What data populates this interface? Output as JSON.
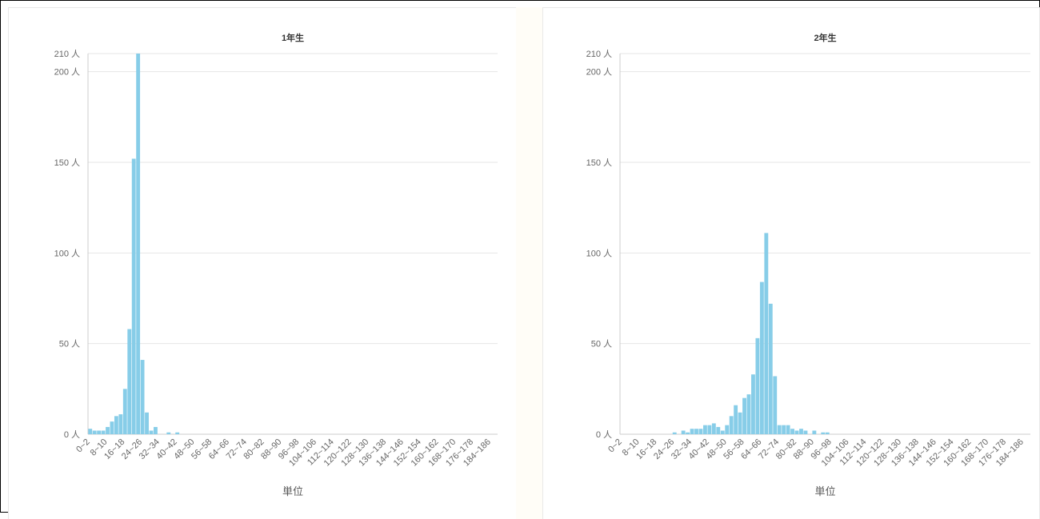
{
  "chart_data": [
    {
      "type": "bar",
      "title": "1年生",
      "xlabel": "単位",
      "ylabel": "",
      "ylim": [
        0,
        210
      ],
      "y_ticks": [
        "0 人",
        "50 人",
        "100 人",
        "150 人",
        "200 人",
        "210 人"
      ],
      "y_tick_values": [
        0,
        50,
        100,
        150,
        200,
        210
      ],
      "bar_color": "#87cde8",
      "x_tick_labels": [
        "0~2",
        "8~10",
        "16~18",
        "24~26",
        "32~34",
        "40~42",
        "48~50",
        "56~58",
        "64~66",
        "72~74",
        "80~82",
        "88~90",
        "96~98",
        "104~106",
        "112~114",
        "120~122",
        "128~130",
        "136~138",
        "144~146",
        "152~154",
        "160~162",
        "168~170",
        "176~178",
        "184~186"
      ],
      "values": [
        3,
        2,
        2,
        2,
        4,
        7,
        10,
        11,
        25,
        58,
        152,
        210,
        41,
        12,
        2,
        4,
        0,
        0,
        1,
        0,
        1,
        0,
        0,
        0,
        0,
        0,
        0,
        0,
        0,
        0,
        0,
        0,
        0,
        0,
        0,
        0,
        0,
        0,
        0,
        0,
        0,
        0,
        0,
        0,
        0,
        0,
        0,
        0,
        0,
        0,
        0,
        0,
        0,
        0,
        0,
        0,
        0,
        0,
        0,
        0,
        0,
        0,
        0,
        0,
        0,
        0,
        0,
        0,
        0,
        0,
        0,
        0,
        0,
        0,
        0,
        0,
        0,
        0,
        0,
        0,
        0,
        0,
        0,
        0,
        0,
        0,
        0,
        0,
        0,
        0,
        0,
        0,
        0,
        0
      ]
    },
    {
      "type": "bar",
      "title": "2年生",
      "xlabel": "単位",
      "ylabel": "",
      "ylim": [
        0,
        210
      ],
      "y_ticks": [
        "0 人",
        "50 人",
        "100 人",
        "150 人",
        "200 人",
        "210 人"
      ],
      "y_tick_values": [
        0,
        50,
        100,
        150,
        200,
        210
      ],
      "bar_color": "#87cde8",
      "x_tick_labels": [
        "0~2",
        "8~10",
        "16~18",
        "24~26",
        "32~34",
        "40~42",
        "48~50",
        "56~58",
        "64~66",
        "72~74",
        "80~82",
        "88~90",
        "96~98",
        "104~106",
        "112~114",
        "120~122",
        "128~130",
        "136~138",
        "144~146",
        "152~154",
        "160~162",
        "168~170",
        "176~178",
        "184~186"
      ],
      "values": [
        0,
        0,
        0,
        0,
        0,
        0,
        0,
        0,
        0,
        0,
        0,
        0,
        1,
        0,
        2,
        1,
        3,
        3,
        3,
        5,
        5,
        6,
        4,
        2,
        5,
        10,
        16,
        12,
        20,
        22,
        33,
        53,
        84,
        111,
        72,
        32,
        5,
        5,
        5,
        3,
        2,
        3,
        2,
        0,
        2,
        0,
        1,
        1,
        0,
        0,
        0,
        0,
        0,
        0,
        0,
        0,
        0,
        0,
        0,
        0,
        0,
        0,
        0,
        0,
        0,
        0,
        0,
        0,
        0,
        0,
        0,
        0,
        0,
        0,
        0,
        0,
        0,
        0,
        0,
        0,
        0,
        0,
        0,
        0,
        0,
        0,
        0,
        0,
        0,
        0,
        0,
        0,
        0,
        0
      ]
    }
  ]
}
